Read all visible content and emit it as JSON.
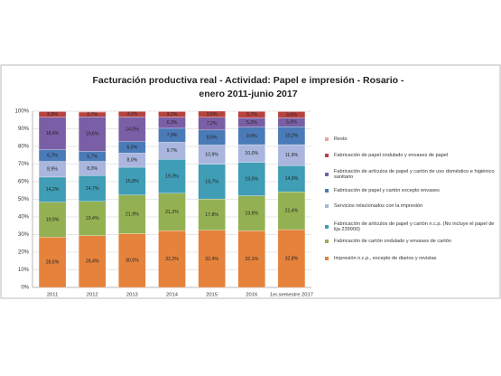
{
  "chart_data": {
    "type": "stacked_bar",
    "title": [
      "Facturación productiva real - Actividad: Papel e impresión - Rosario -",
      "enero 2011-junio 2017"
    ],
    "categories": [
      "2011",
      "2012",
      "2013",
      "2014",
      "2015",
      "2016",
      "1er.semestre 2017"
    ],
    "ylim": [
      0,
      100
    ],
    "yticks": [
      {
        "value": 0,
        "label": "0%"
      },
      {
        "value": 10,
        "label": "10%"
      },
      {
        "value": 20,
        "label": "20%"
      },
      {
        "value": 30,
        "label": "30%"
      },
      {
        "value": 40,
        "label": "40%"
      },
      {
        "value": 50,
        "label": "50%"
      },
      {
        "value": 60,
        "label": "60%"
      },
      {
        "value": 70,
        "label": "70%"
      },
      {
        "value": 80,
        "label": "80%"
      },
      {
        "value": 90,
        "label": "90%"
      },
      {
        "value": 100,
        "label": "100%"
      }
    ],
    "grid": true,
    "series": [
      {
        "name": "Impresión n.c.p., excepto de diarios y revistas",
        "color": "#e5823c",
        "values": [
          28.5,
          29.4,
          30.5,
          32.2,
          32.4,
          32.1,
          32.8
        ],
        "value_labels": [
          "28,5%",
          "29,4%",
          "30,5%",
          "32,2%",
          "32,4%",
          "32,1%",
          "32,8%"
        ]
      },
      {
        "name": "Fabricación de cartón ondulado y envases de cartón",
        "color": "#93b152",
        "values": [
          19.9,
          19.4,
          21.9,
          21.2,
          17.8,
          19.9,
          21.4
        ],
        "value_labels": [
          "19,9%",
          "19,4%",
          "21,9%",
          "21,2%",
          "17,8%",
          "19,9%",
          "21,4%"
        ]
      },
      {
        "name": "Fabricación de artículos de papel y cartón n.c.p. (No incluye el papel de lija 239900)",
        "color": "#3f9db5",
        "values": [
          14.2,
          14.7,
          15.8,
          19.3,
          19.7,
          19.0,
          14.9
        ],
        "value_labels": [
          "14,2%",
          "14,7%",
          "15,8%",
          "19,3%",
          "19,7%",
          "19,0%",
          "14,9%"
        ]
      },
      {
        "name": "Servicios relacionados con la impresión",
        "color": "#aab6dd",
        "values": [
          8.9,
          8.0,
          8.0,
          9.7,
          10.9,
          10.0,
          11.9
        ],
        "value_labels": [
          "8,9%",
          "8,0%",
          "8,0%",
          "9,7%",
          "10,9%",
          "10,0%",
          "11,9%"
        ]
      },
      {
        "name": "Fabricación de papel y cartón excepto envases",
        "color": "#4a7bb8",
        "values": [
          6.7,
          5.7,
          6.5,
          7.9,
          8.5,
          9.9,
          10.2
        ],
        "value_labels": [
          "6,7%",
          "5,7%",
          "6,5%",
          "7,9%",
          "8,5%",
          "9,9%",
          "10,2%"
        ]
      },
      {
        "name": "Fabricación de artículos de papel y cartón de uso doméstico e higiénico sanitario",
        "color": "#7a5fa6",
        "values": [
          18.4,
          19.6,
          14.0,
          6.3,
          7.2,
          5.3,
          5.0
        ],
        "value_labels": [
          "18,4%",
          "19,6%",
          "14,0%",
          "6,3%",
          "7,2%",
          "5,3%",
          "5,0%"
        ]
      },
      {
        "name": "Fabricación de papel ondulado y envases de papel",
        "color": "#b7433f",
        "values": [
          3.2,
          2.7,
          3.2,
          3.2,
          3.5,
          3.7,
          3.6
        ],
        "value_labels": [
          "3,2%",
          "2,7%",
          "3,2%",
          "3,2%",
          "3,5%",
          "3,7%",
          "3,6%"
        ]
      },
      {
        "name": "Resto",
        "color": "#e0a9a6",
        "values": [
          0.2,
          0.5,
          0.1,
          0.2,
          0.0,
          0.1,
          0.2
        ]
      }
    ]
  }
}
